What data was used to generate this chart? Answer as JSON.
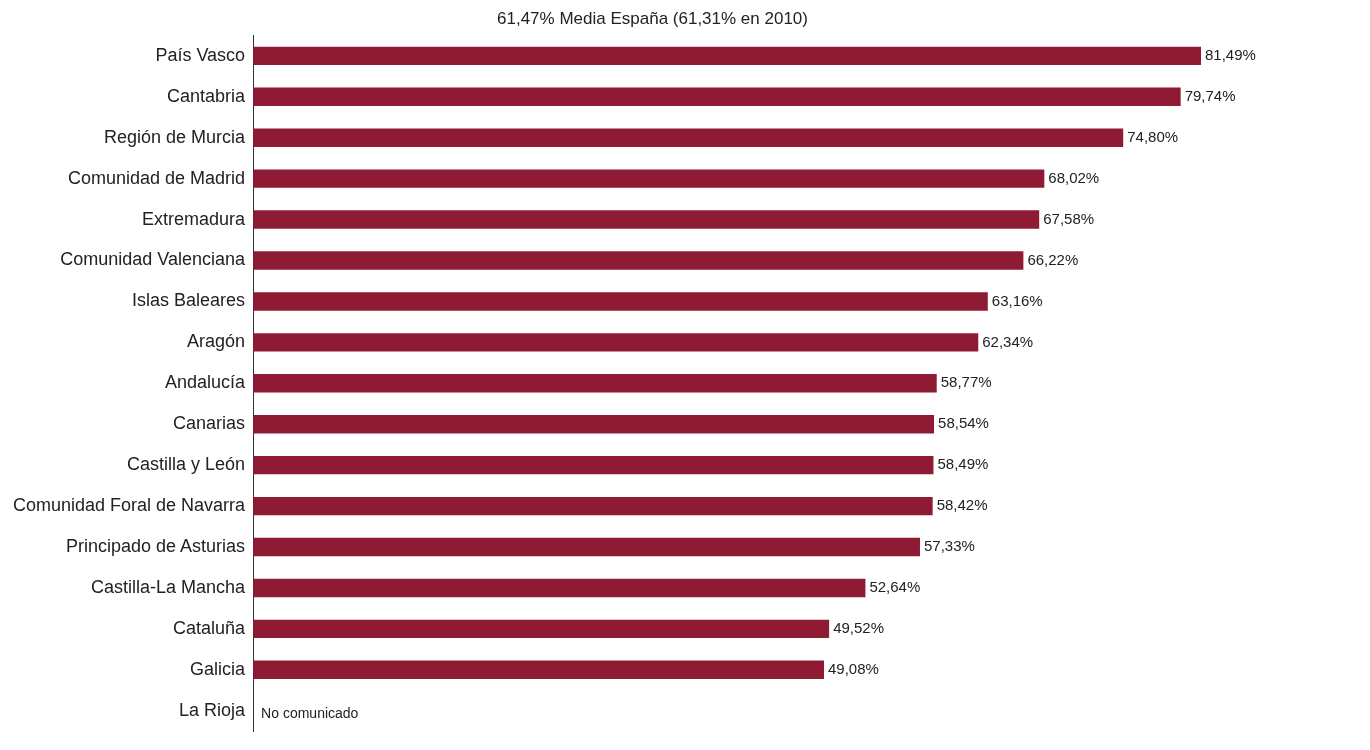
{
  "chart_data": {
    "type": "bar",
    "orientation": "horizontal",
    "title": "61,47% Media España (61,31% en 2010)",
    "categories": [
      "País Vasco",
      "Cantabria",
      "Región de Murcia",
      "Comunidad de Madrid",
      "Extremadura",
      "Comunidad Valenciana",
      "Islas Baleares",
      "Aragón",
      "Andalucía",
      "Canarias",
      "Castilla y León",
      "Comunidad Foral de Navarra",
      "Principado de Asturias",
      "Castilla-La Mancha",
      "Cataluña",
      "Galicia",
      "La Rioja"
    ],
    "values": [
      81.49,
      79.74,
      74.8,
      68.02,
      67.58,
      66.22,
      63.16,
      62.34,
      58.77,
      58.54,
      58.49,
      58.42,
      57.33,
      52.64,
      49.52,
      49.08,
      null
    ],
    "value_labels": [
      "81,49%",
      "79,74%",
      "74,80%",
      "68,02%",
      "67,58%",
      "66,22%",
      "63,16%",
      "62,34%",
      "58,77%",
      "58,54%",
      "58,49%",
      "58,42%",
      "57,33%",
      "52,64%",
      "49,52%",
      "49,08%",
      null
    ],
    "color": "#8e1b33",
    "annotations": [
      "No comunicado"
    ],
    "grid": false,
    "legend": false
  }
}
